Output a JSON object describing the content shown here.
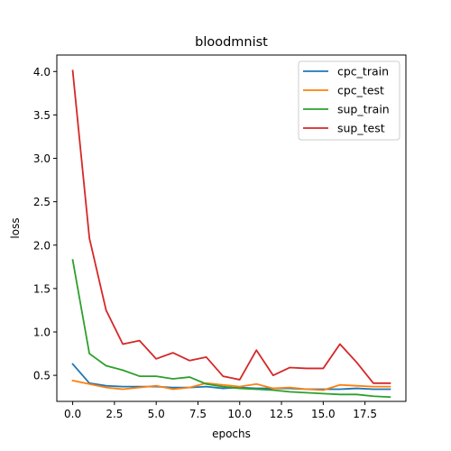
{
  "chart_data": {
    "type": "line",
    "title": "bloodmnist",
    "xlabel": "epochs",
    "ylabel": "loss",
    "xlim": [
      -0.95,
      19.95
    ],
    "ylim": [
      0.2,
      4.19
    ],
    "xticks": [
      0,
      2.5,
      5,
      7.5,
      10,
      12.5,
      15,
      17.5
    ],
    "xtick_labels": [
      "0.0",
      "2.5",
      "5.0",
      "7.5",
      "10.0",
      "12.5",
      "15.0",
      "17.5"
    ],
    "yticks": [
      0.5,
      1.0,
      1.5,
      2.0,
      2.5,
      3.0,
      3.5,
      4.0
    ],
    "ytick_labels": [
      "0.5",
      "1.0",
      "1.5",
      "2.0",
      "2.5",
      "3.0",
      "3.5",
      "4.0"
    ],
    "grid": false,
    "legend": "top-right",
    "x": [
      0,
      1,
      2,
      3,
      4,
      5,
      6,
      7,
      8,
      9,
      10,
      11,
      12,
      13,
      14,
      15,
      16,
      17,
      18,
      19
    ],
    "series": [
      {
        "name": "cpc_train",
        "color": "#1f77b4",
        "values": [
          0.63,
          0.41,
          0.38,
          0.37,
          0.37,
          0.37,
          0.36,
          0.36,
          0.37,
          0.35,
          0.36,
          0.35,
          0.35,
          0.35,
          0.34,
          0.34,
          0.34,
          0.35,
          0.34,
          0.34
        ]
      },
      {
        "name": "cpc_test",
        "color": "#ff7f0e",
        "values": [
          0.44,
          0.4,
          0.36,
          0.34,
          0.36,
          0.38,
          0.34,
          0.36,
          0.41,
          0.39,
          0.37,
          0.4,
          0.35,
          0.36,
          0.34,
          0.33,
          0.39,
          0.38,
          0.37,
          0.37
        ]
      },
      {
        "name": "sup_train",
        "color": "#2ca02c",
        "values": [
          1.83,
          0.75,
          0.61,
          0.56,
          0.49,
          0.49,
          0.46,
          0.48,
          0.4,
          0.37,
          0.35,
          0.34,
          0.33,
          0.31,
          0.3,
          0.29,
          0.28,
          0.28,
          0.26,
          0.25
        ]
      },
      {
        "name": "sup_test",
        "color": "#d62728",
        "values": [
          4.01,
          2.08,
          1.25,
          0.86,
          0.9,
          0.69,
          0.76,
          0.67,
          0.71,
          0.49,
          0.45,
          0.79,
          0.5,
          0.59,
          0.58,
          0.58,
          0.86,
          0.65,
          0.41,
          0.41
        ]
      }
    ]
  }
}
